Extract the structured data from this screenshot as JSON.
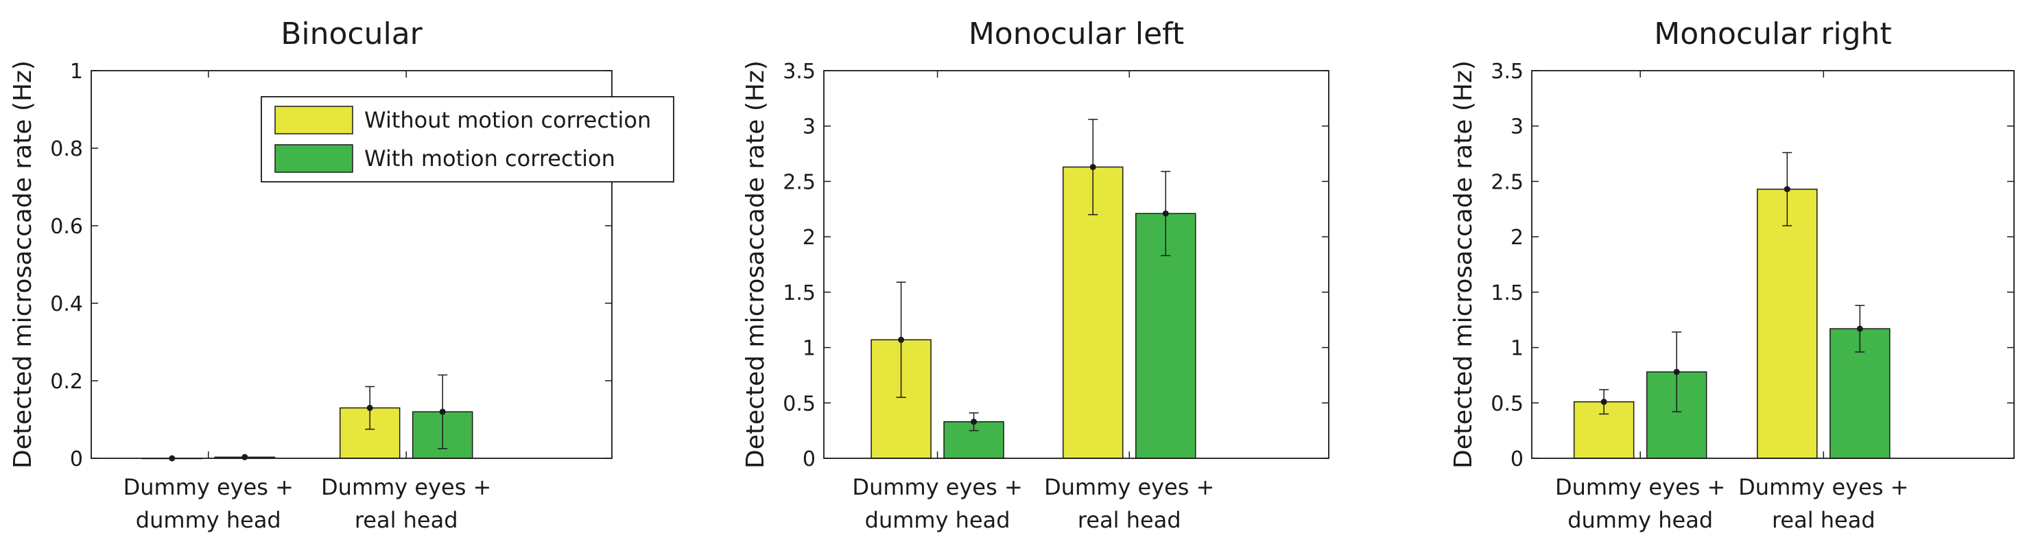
{
  "figure": {
    "colors": {
      "without": "#e6e63c",
      "with": "#42b54a",
      "axis": "#1a1a1a"
    }
  },
  "chart_data": [
    {
      "type": "bar",
      "title": "Binocular",
      "xlabel": "",
      "ylabel": "Detected microsaccade rate (Hz)",
      "ylim": [
        0,
        1
      ],
      "yticks": [
        "0",
        "0.2",
        "0.4",
        "0.6",
        "0.8",
        "1"
      ],
      "ytick_values": [
        0,
        0.2,
        0.4,
        0.6,
        0.8,
        1
      ],
      "categories": [
        [
          "Dummy eyes +",
          "dummy head"
        ],
        [
          "Dummy eyes +",
          "real head"
        ]
      ],
      "series": [
        {
          "name": "Without motion correction",
          "color": "#e6e63c",
          "values": [
            0.0,
            0.13
          ],
          "errors": [
            0.0,
            0.055
          ]
        },
        {
          "name": "With motion correction",
          "color": "#42b54a",
          "values": [
            0.003,
            0.12
          ],
          "errors": [
            0.0,
            0.095
          ]
        }
      ],
      "legend": {
        "show": true,
        "placement": "top-right"
      }
    },
    {
      "type": "bar",
      "title": "Monocular left",
      "xlabel": "",
      "ylabel": "Detected microsaccade rate (Hz)",
      "ylim": [
        0,
        3.5
      ],
      "yticks": [
        "0",
        "0.5",
        "1",
        "1.5",
        "2",
        "2.5",
        "3",
        "3.5"
      ],
      "ytick_values": [
        0,
        0.5,
        1,
        1.5,
        2,
        2.5,
        3,
        3.5
      ],
      "categories": [
        [
          "Dummy eyes +",
          "dummy head"
        ],
        [
          "Dummy eyes +",
          "real head"
        ]
      ],
      "series": [
        {
          "name": "Without motion correction",
          "color": "#e6e63c",
          "values": [
            1.07,
            2.63
          ],
          "errors": [
            0.52,
            0.43
          ]
        },
        {
          "name": "With motion correction",
          "color": "#42b54a",
          "values": [
            0.33,
            2.21
          ],
          "errors": [
            0.08,
            0.38
          ]
        }
      ],
      "legend": {
        "show": false
      }
    },
    {
      "type": "bar",
      "title": "Monocular right",
      "xlabel": "",
      "ylabel": "Detected microsaccade rate (Hz)",
      "ylim": [
        0,
        3.5
      ],
      "yticks": [
        "0",
        "0.5",
        "1",
        "1.5",
        "2",
        "2.5",
        "3",
        "3.5"
      ],
      "ytick_values": [
        0,
        0.5,
        1,
        1.5,
        2,
        2.5,
        3,
        3.5
      ],
      "categories": [
        [
          "Dummy eyes +",
          "dummy head"
        ],
        [
          "Dummy eyes +",
          "real head"
        ]
      ],
      "series": [
        {
          "name": "Without motion correction",
          "color": "#e6e63c",
          "values": [
            0.51,
            2.43
          ],
          "errors": [
            0.11,
            0.33
          ]
        },
        {
          "name": "With motion correction",
          "color": "#42b54a",
          "values": [
            0.78,
            1.17
          ],
          "errors": [
            0.36,
            0.21
          ]
        }
      ],
      "legend": {
        "show": false
      }
    }
  ]
}
